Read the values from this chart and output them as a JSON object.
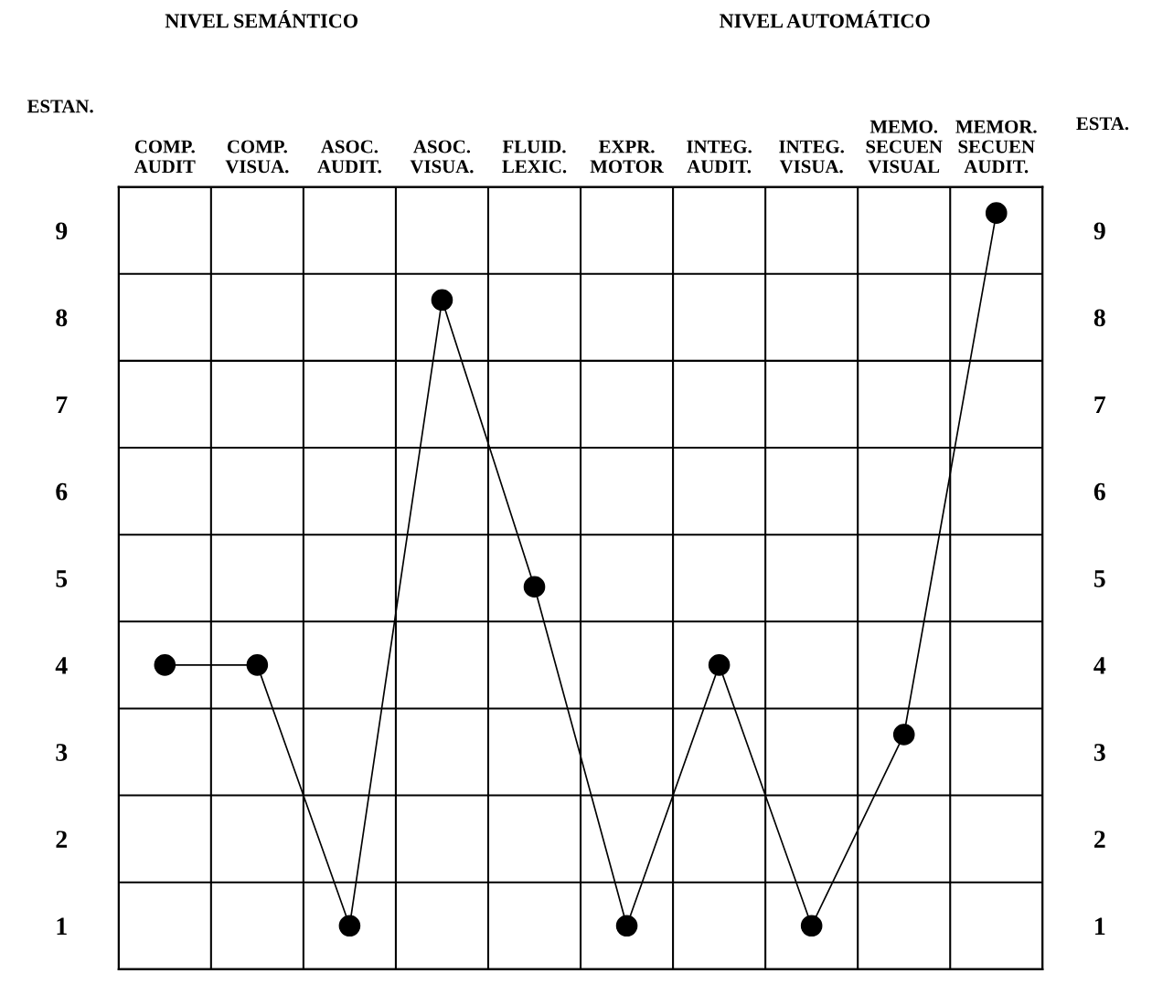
{
  "chart_data": {
    "type": "line",
    "categories": [
      "COMP.\nAUDIT",
      "COMP.\nVISUA.",
      "ASOC.\nAUDIT.",
      "ASOC.\nVISUA.",
      "FLUID.\nLEXIC.",
      "EXPR.\nMOTOR",
      "INTEG.\nAUDIT.",
      "INTEG.\nVISUA.",
      "MEMO.\nSECUEN\nVISUAL",
      "MEMOR.\nSECUEN\nAUDIT."
    ],
    "series": [
      {
        "color": "#000000",
        "values": [
          4,
          4,
          1,
          8.2,
          4.9,
          1,
          4,
          1,
          3.2,
          9.2
        ]
      }
    ],
    "ylabel": "ESTAN.",
    "y2label": "ESTA.",
    "annotations": [
      "NIVEL SEMÁNTICO",
      "NIVEL AUTOMÁTICO"
    ],
    "ylim": [
      0.5,
      9.5
    ],
    "yticks": [
      1,
      2,
      3,
      4,
      5,
      6,
      7,
      8,
      9
    ],
    "y2lim": [
      0.5,
      9.5
    ],
    "y2ticks": [
      1,
      2,
      3,
      4,
      5,
      6,
      7,
      8,
      9
    ],
    "grid": true,
    "legend": false,
    "marker": "circle",
    "line_style": "solid"
  }
}
